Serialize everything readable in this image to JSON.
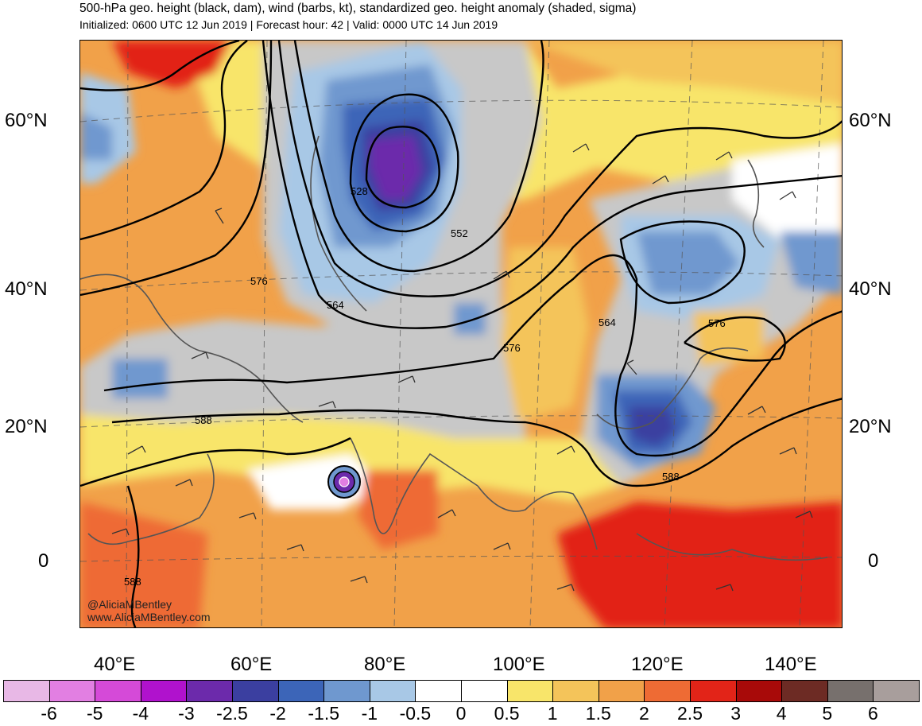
{
  "header": {
    "title": "500-hPa geo. height (black, dam), wind (barbs, kt), standardized geo. height anomaly (shaded, sigma)",
    "subtitle": "Initialized: 0600 UTC 12 Jun 2019 | Forecast hour: 42 | Valid: 0000 UTC 14 Jun 2019"
  },
  "lat_labels": [
    "60°N",
    "40°N",
    "20°N",
    "0"
  ],
  "lon_labels": [
    "40°E",
    "60°E",
    "80°E",
    "100°E",
    "120°E",
    "140°E"
  ],
  "contour_labels": [
    "528",
    "552",
    "564",
    "576",
    "564",
    "576",
    "576",
    "588",
    "588",
    "588"
  ],
  "credits": [
    "@AliciaMBentley",
    "www.AliciaMBentley.com"
  ],
  "colorbar": {
    "labels": [
      "-6",
      "-5",
      "-4",
      "-3",
      "-2.5",
      "-2",
      "-1.5",
      "-1",
      "-0.5",
      "0",
      "0.5",
      "1",
      "1.5",
      "2",
      "2.5",
      "3",
      "4",
      "5",
      "6"
    ],
    "colors": [
      "#e8b8e6",
      "#e27fe2",
      "#d54ad8",
      "#b012cd",
      "#6c2aab",
      "#3b3fa0",
      "#3c65b8",
      "#6f98cf",
      "#a8c8e6",
      "#ffffff",
      "#ffffff",
      "#f8e56a",
      "#f4c45a",
      "#f1a149",
      "#ee6b34",
      "#e22418",
      "#a80a09",
      "#6d2b24",
      "#77706d",
      "#a89e9c"
    ]
  },
  "colors": {
    "warm_background": "#f1a149",
    "strong_warm": "#e22418",
    "gray_zone": "#c8c8c8",
    "low_center": "#6c2aab"
  }
}
